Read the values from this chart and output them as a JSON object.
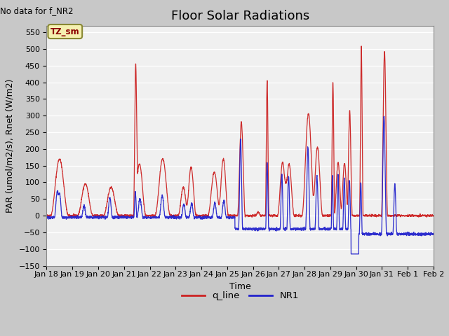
{
  "title": "Floor Solar Radiations",
  "top_left_text": "No data for f_NR2",
  "legend_box_text": "TZ_sm",
  "xlabel": "Time",
  "ylabel": "PAR (umol/m2/s), Rnet (W/m2)",
  "ylim": [
    -150,
    570
  ],
  "yticks": [
    -150,
    -100,
    -50,
    0,
    50,
    100,
    150,
    200,
    250,
    300,
    350,
    400,
    450,
    500,
    550
  ],
  "x_tick_labels": [
    "Jan 18",
    "Jan 19",
    "Jan 20",
    "Jan 21",
    "Jan 22",
    "Jan 23",
    "Jan 24",
    "Jan 25",
    "Jan 26",
    "Jan 27",
    "Jan 28",
    "Jan 29",
    "Jan 30",
    "Jan 31",
    "Feb 1",
    "Feb 2"
  ],
  "title_fontsize": 13,
  "label_fontsize": 9,
  "tick_fontsize": 8,
  "plot_bg_color": "#f0f0f0",
  "fig_bg_color": "#c8c8c8",
  "q_line_color": "#cc2222",
  "NR1_color": "#2222cc",
  "legend_entries": [
    "q_line",
    "NR1"
  ],
  "n_points": 3000,
  "seed": 42
}
